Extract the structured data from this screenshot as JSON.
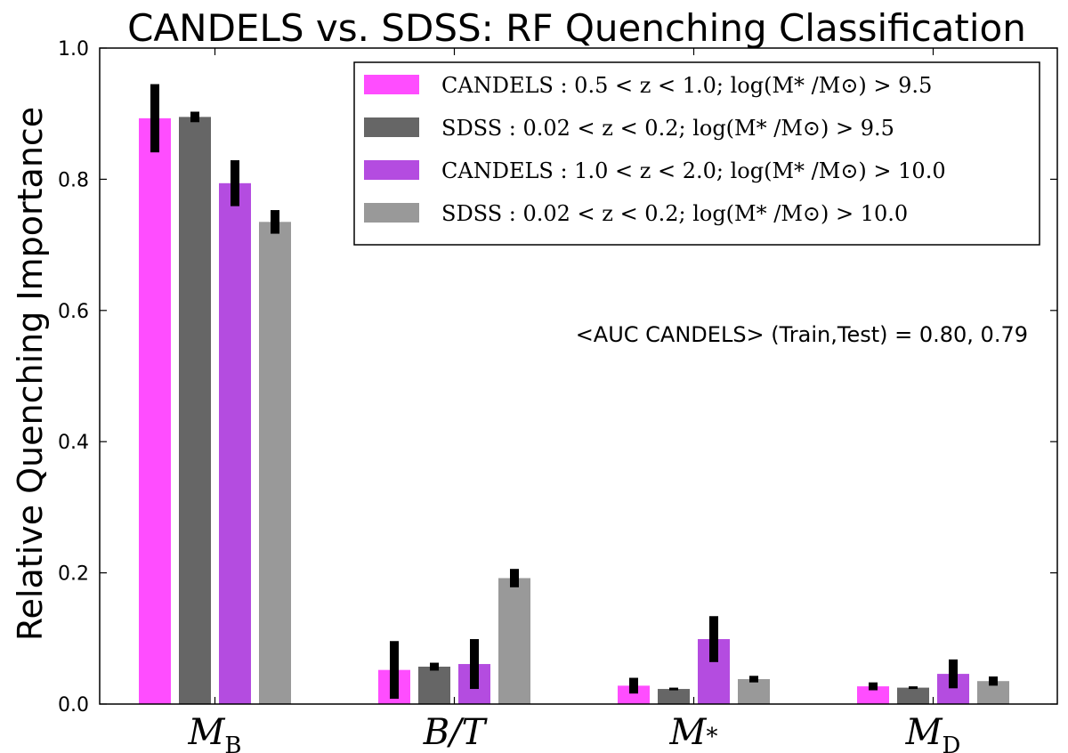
{
  "chart_data": {
    "type": "bar",
    "title": "CANDELS vs. SDSS:  RF Quenching Classification",
    "ylabel": "Relative Quenching Importance",
    "ylim": [
      0.0,
      1.0
    ],
    "yticks": [
      "0.0",
      "0.2",
      "0.4",
      "0.6",
      "0.8",
      "1.0"
    ],
    "ytick_values": [
      0.0,
      0.2,
      0.4,
      0.6,
      0.8,
      1.0
    ],
    "categories": [
      {
        "main": "M",
        "sub": "B"
      },
      {
        "main": "B/T",
        "sub": ""
      },
      {
        "main": "M",
        "sub": "*"
      },
      {
        "main": "M",
        "sub": "D"
      }
    ],
    "series": [
      {
        "name": "CANDELS : 0.5 < z < 1.0; log(M* /M⊙) > 9.5",
        "color": "#ff4dff",
        "values": [
          0.893,
          0.052,
          0.028,
          0.027
        ],
        "errors": [
          0.052,
          0.044,
          0.012,
          0.006
        ]
      },
      {
        "name": "SDSS : 0.02 < z < 0.2; log(M* /M⊙) > 9.5",
        "color": "#666666",
        "values": [
          0.895,
          0.057,
          0.023,
          0.025
        ],
        "errors": [
          0.008,
          0.006,
          0.002,
          0.002
        ]
      },
      {
        "name": "CANDELS : 1.0 < z < 2.0; log(M* /M⊙) > 10.0",
        "color": "#b44ce0",
        "values": [
          0.794,
          0.061,
          0.099,
          0.046
        ],
        "errors": [
          0.035,
          0.038,
          0.035,
          0.022
        ]
      },
      {
        "name": "SDSS : 0.02 < z < 0.2; log(M* /M⊙) > 10.0",
        "color": "#999999",
        "values": [
          0.735,
          0.192,
          0.038,
          0.035
        ],
        "errors": [
          0.018,
          0.014,
          0.005,
          0.007
        ]
      }
    ],
    "annotation": "<AUC CANDELS> (Train,Test) = 0.80, 0.79",
    "legend_position": "top-right",
    "grid": false
  }
}
